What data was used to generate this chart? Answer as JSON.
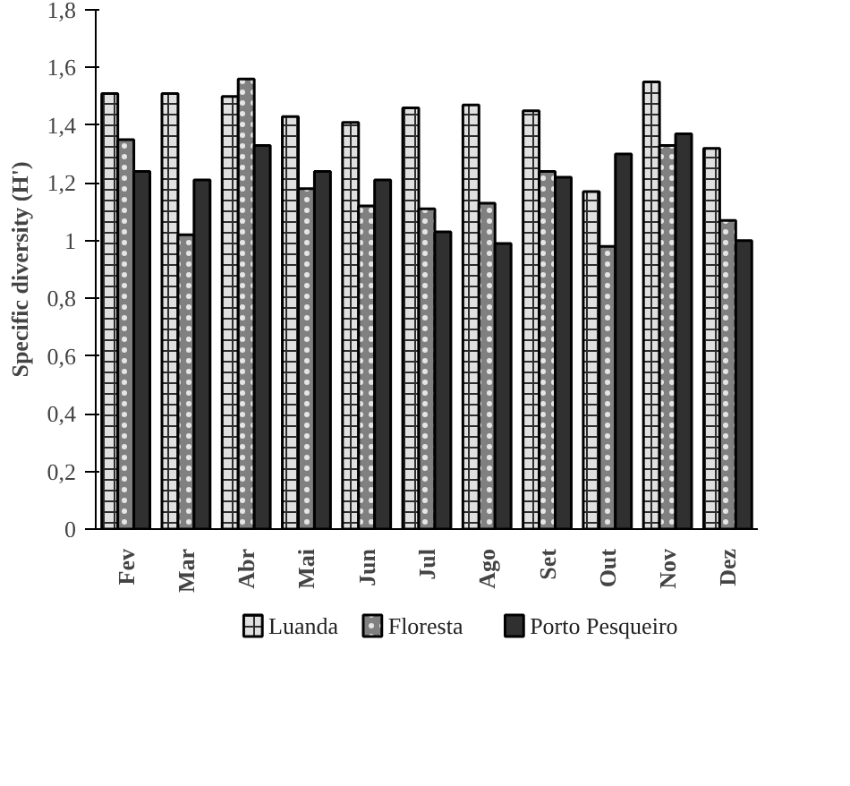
{
  "chart_data": {
    "type": "bar",
    "ylabel": "Specific diversity (H')",
    "categories": [
      "Fev",
      "Mar",
      "Abr",
      "Mai",
      "Jun",
      "Jul",
      "Ago",
      "Set",
      "Out",
      "Nov",
      "Dez"
    ],
    "series": [
      {
        "name": "Luanda",
        "color": "#e0e0e0",
        "values": [
          1.51,
          1.51,
          1.5,
          1.43,
          1.41,
          1.46,
          1.47,
          1.45,
          1.17,
          1.55,
          1.32
        ]
      },
      {
        "name": "Floresta",
        "color": "#808080",
        "values": [
          1.35,
          1.02,
          1.56,
          1.18,
          1.12,
          1.11,
          1.13,
          1.24,
          0.98,
          1.33,
          1.07
        ]
      },
      {
        "name": "Porto Pesqueiro",
        "color": "#303030",
        "values": [
          1.24,
          1.21,
          1.33,
          1.24,
          1.21,
          1.03,
          0.99,
          1.22,
          1.3,
          1.37,
          1.0
        ]
      }
    ],
    "ylim": [
      0,
      1.8
    ],
    "yticks": [
      0,
      {
        "value": 0.2,
        "label": "0,2"
      },
      {
        "value": 0.4,
        "label": "0,4"
      },
      {
        "value": 0.6,
        "label": "0,6"
      },
      {
        "value": 0.8,
        "label": "0,8"
      },
      1,
      {
        "value": 1.2,
        "label": "1,2"
      },
      {
        "value": 1.4,
        "label": "1,4"
      },
      {
        "value": 1.6,
        "label": "1,6"
      },
      {
        "value": 1.8,
        "label": "1,8"
      }
    ],
    "grid": false,
    "legend": "bottom"
  }
}
